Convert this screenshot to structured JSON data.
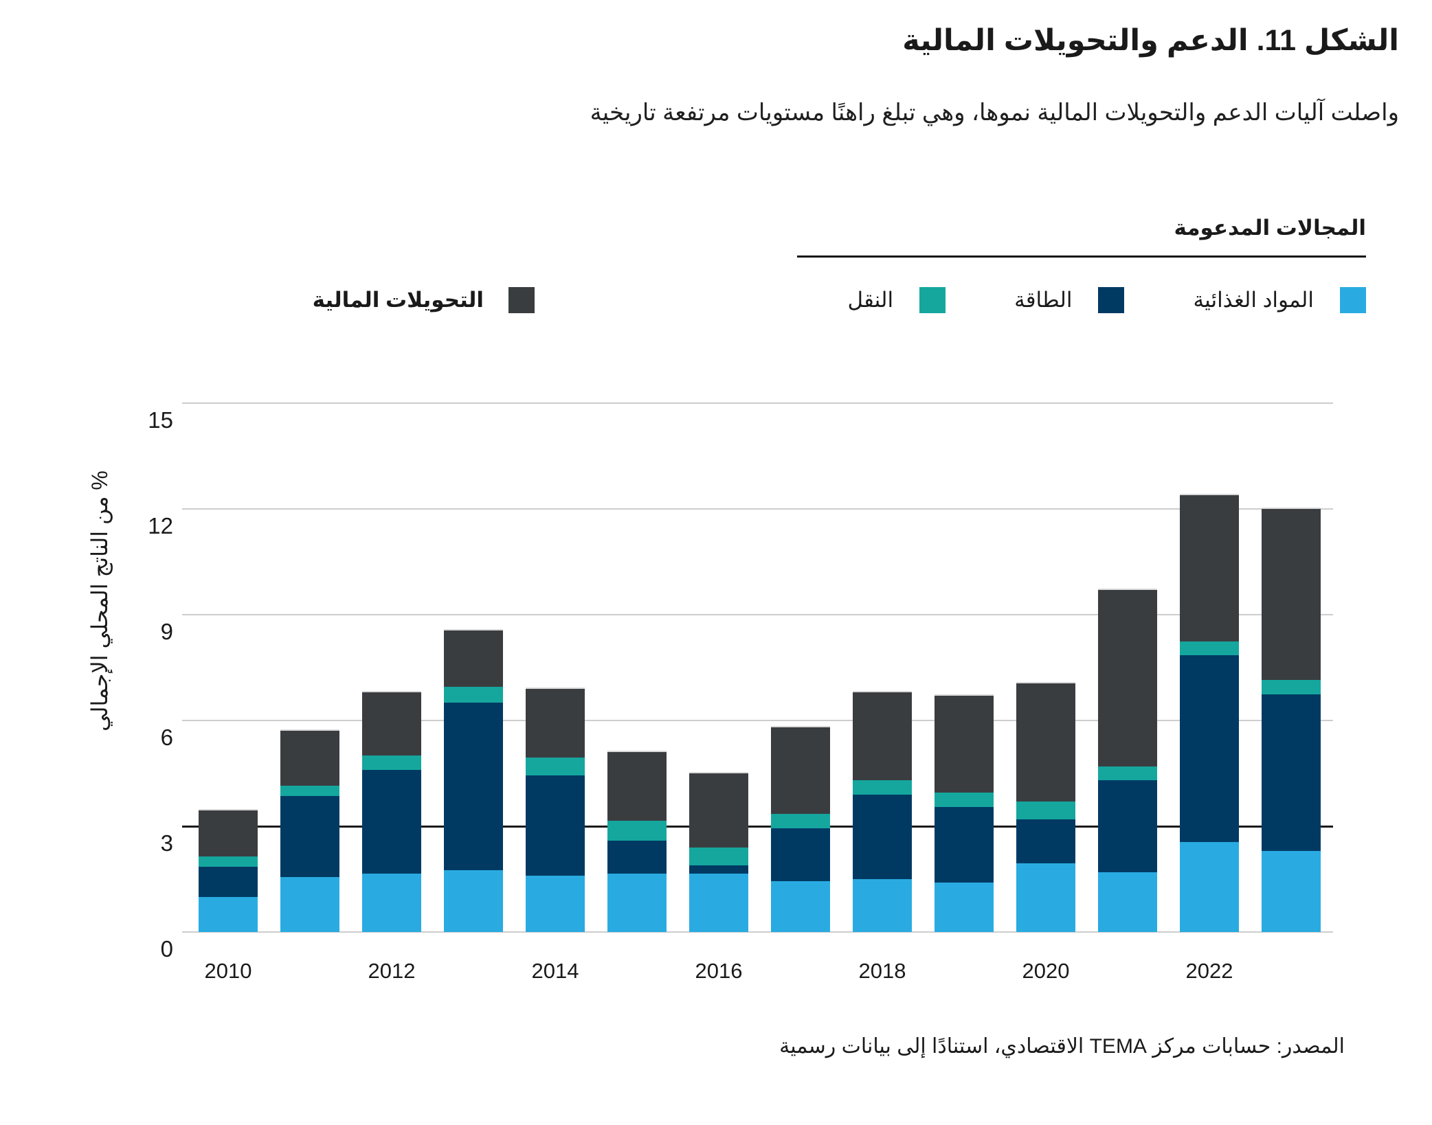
{
  "title": "الشكل 11. الدعم والتحويلات المالية",
  "subtitle": "واصلت آليات الدعم والتحويلات المالية نموها، وهي تبلغ راهنًا مستويات مرتفعة تاريخية",
  "legend": {
    "header": "المجالات المدعومة",
    "areas": [
      {
        "label": "المواد الغذائية",
        "color": "#29ABE2"
      },
      {
        "label": "الطاقة",
        "color": "#003A63"
      },
      {
        "label": "النقل",
        "color": "#15A79E"
      }
    ],
    "transfers": {
      "label": "التحويلات المالية",
      "color": "#3A3D40"
    }
  },
  "chart_data": {
    "type": "bar",
    "stacked": true,
    "categories": [
      2010,
      2011,
      2012,
      2013,
      2014,
      2015,
      2016,
      2017,
      2018,
      2019,
      2020,
      2021,
      2022,
      2023
    ],
    "series": [
      {
        "name": "المواد الغذائية",
        "color": "#29ABE2",
        "values": [
          1.0,
          1.55,
          1.65,
          1.75,
          1.6,
          1.65,
          1.65,
          1.45,
          1.5,
          1.4,
          1.95,
          1.7,
          2.55,
          2.3
        ]
      },
      {
        "name": "الطاقة",
        "color": "#003A63",
        "values": [
          0.85,
          2.3,
          2.95,
          4.75,
          2.85,
          0.95,
          0.25,
          1.5,
          2.4,
          2.15,
          1.25,
          2.6,
          5.3,
          4.45
        ]
      },
      {
        "name": "النقل",
        "color": "#15A79E",
        "values": [
          0.3,
          0.3,
          0.4,
          0.45,
          0.5,
          0.55,
          0.5,
          0.4,
          0.4,
          0.4,
          0.5,
          0.4,
          0.4,
          0.4
        ]
      },
      {
        "name": "التحويلات المالية",
        "color": "#3A3D40",
        "values": [
          1.3,
          1.55,
          1.8,
          1.6,
          1.95,
          1.95,
          2.1,
          2.45,
          2.5,
          2.75,
          3.35,
          5.0,
          4.15,
          4.85
        ]
      }
    ],
    "totals": [
      3.45,
      5.7,
      6.8,
      8.55,
      6.9,
      5.1,
      4.5,
      5.8,
      6.8,
      6.7,
      7.05,
      9.7,
      12.4,
      12.0
    ],
    "ylabel": "% من الناتج المحلي الإجمالي",
    "ylim": [
      0,
      15
    ],
    "yticks": [
      0,
      3,
      6,
      9,
      12,
      15
    ],
    "emphasis_line": 3,
    "xtick_labels": [
      "2010",
      "2012",
      "2014",
      "2016",
      "2018",
      "2020",
      "2022"
    ],
    "grid": true,
    "legend_position": "top"
  },
  "source": "المصدر: حسابات مركز TEMA الاقتصادي، استنادًا إلى بيانات رسمية"
}
